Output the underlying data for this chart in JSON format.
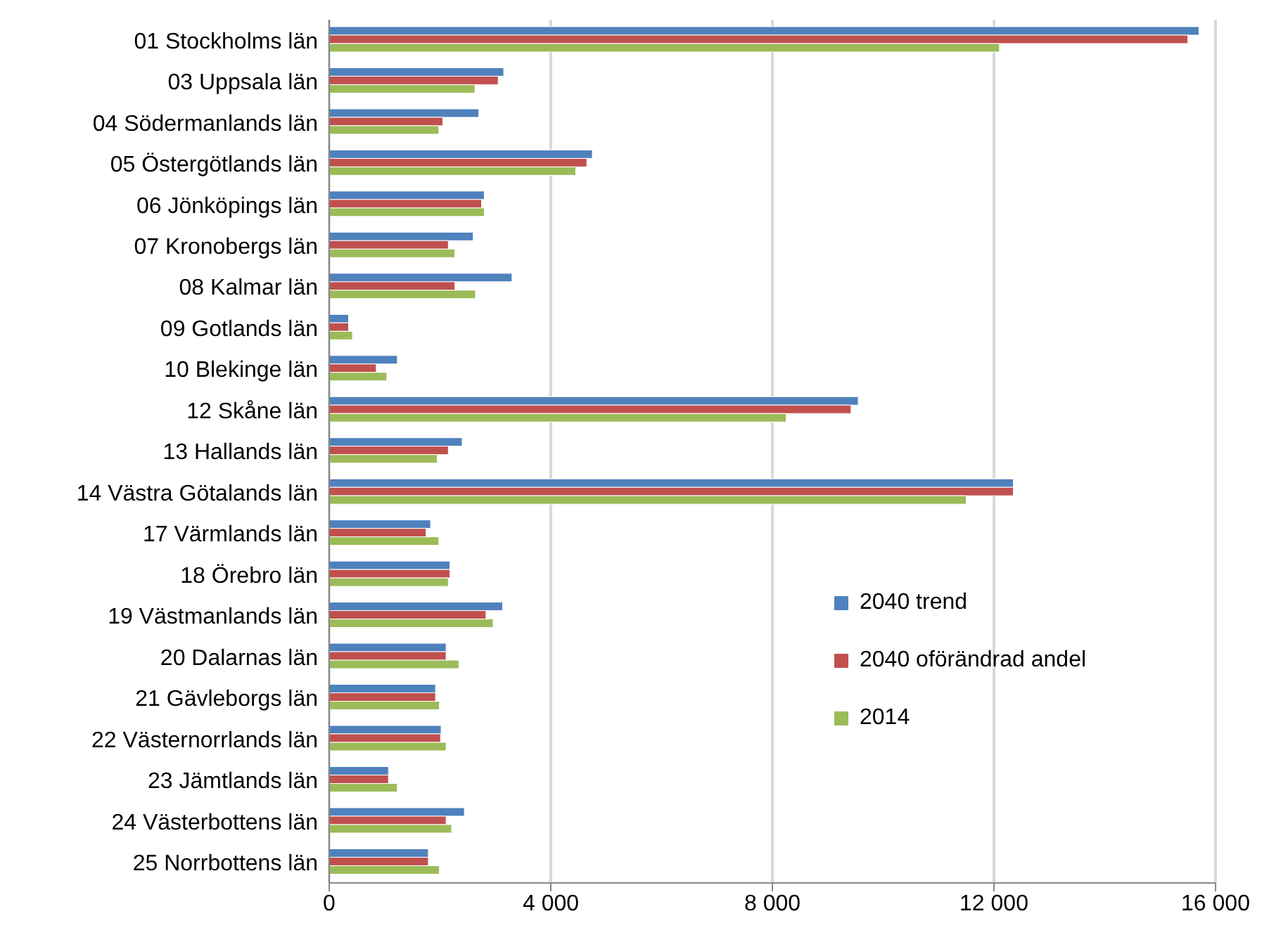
{
  "chart_data": {
    "type": "bar",
    "orientation": "horizontal",
    "categories": [
      "01 Stockholms län",
      "03 Uppsala län",
      "04 Södermanlands län",
      "05 Östergötlands län",
      "06 Jönköpings län",
      "07 Kronobergs län",
      "08 Kalmar län",
      "09 Gotlands län",
      "10 Blekinge län",
      "12 Skåne län",
      "13 Hallands län",
      "14 Västra Götalands län",
      "17 Värmlands län",
      "18 Örebro län",
      "19 Västmanlands län",
      "20 Dalarnas län",
      "21 Gävleborgs län",
      "22 Västernorrlands län",
      "23 Jämtlands län",
      "24 Västerbottens län",
      "25 Norrbottens län"
    ],
    "series": [
      {
        "name": "2040 trend",
        "color": "#4f81bd",
        "values": [
          15700,
          3150,
          2700,
          4750,
          2800,
          2600,
          3300,
          350,
          1230,
          9550,
          2400,
          12350,
          1830,
          2180,
          3130,
          2110,
          1920,
          2020,
          1070,
          2440,
          1790
        ]
      },
      {
        "name": "2040 oförändrad andel",
        "color": "#c0504d",
        "values": [
          15500,
          3050,
          2050,
          4650,
          2750,
          2150,
          2270,
          350,
          850,
          9420,
          2150,
          12350,
          1750,
          2180,
          2830,
          2110,
          1920,
          2010,
          1070,
          2110,
          1790
        ]
      },
      {
        "name": "2014",
        "color": "#9bbb59",
        "values": [
          12100,
          2630,
          1980,
          4450,
          2800,
          2270,
          2640,
          420,
          1040,
          8250,
          1950,
          11500,
          1980,
          2150,
          2960,
          2340,
          1990,
          2110,
          1230,
          2210,
          1990
        ]
      }
    ],
    "xlim": [
      0,
      16000
    ],
    "xticks": [
      0,
      {
        "value": 4000,
        "label": "4 000"
      },
      {
        "value": 8000,
        "label": "8 000"
      },
      {
        "value": 12000,
        "label": "12 000"
      },
      {
        "value": 16000,
        "label": "16 000"
      }
    ],
    "grid": "x",
    "legend": "right"
  }
}
